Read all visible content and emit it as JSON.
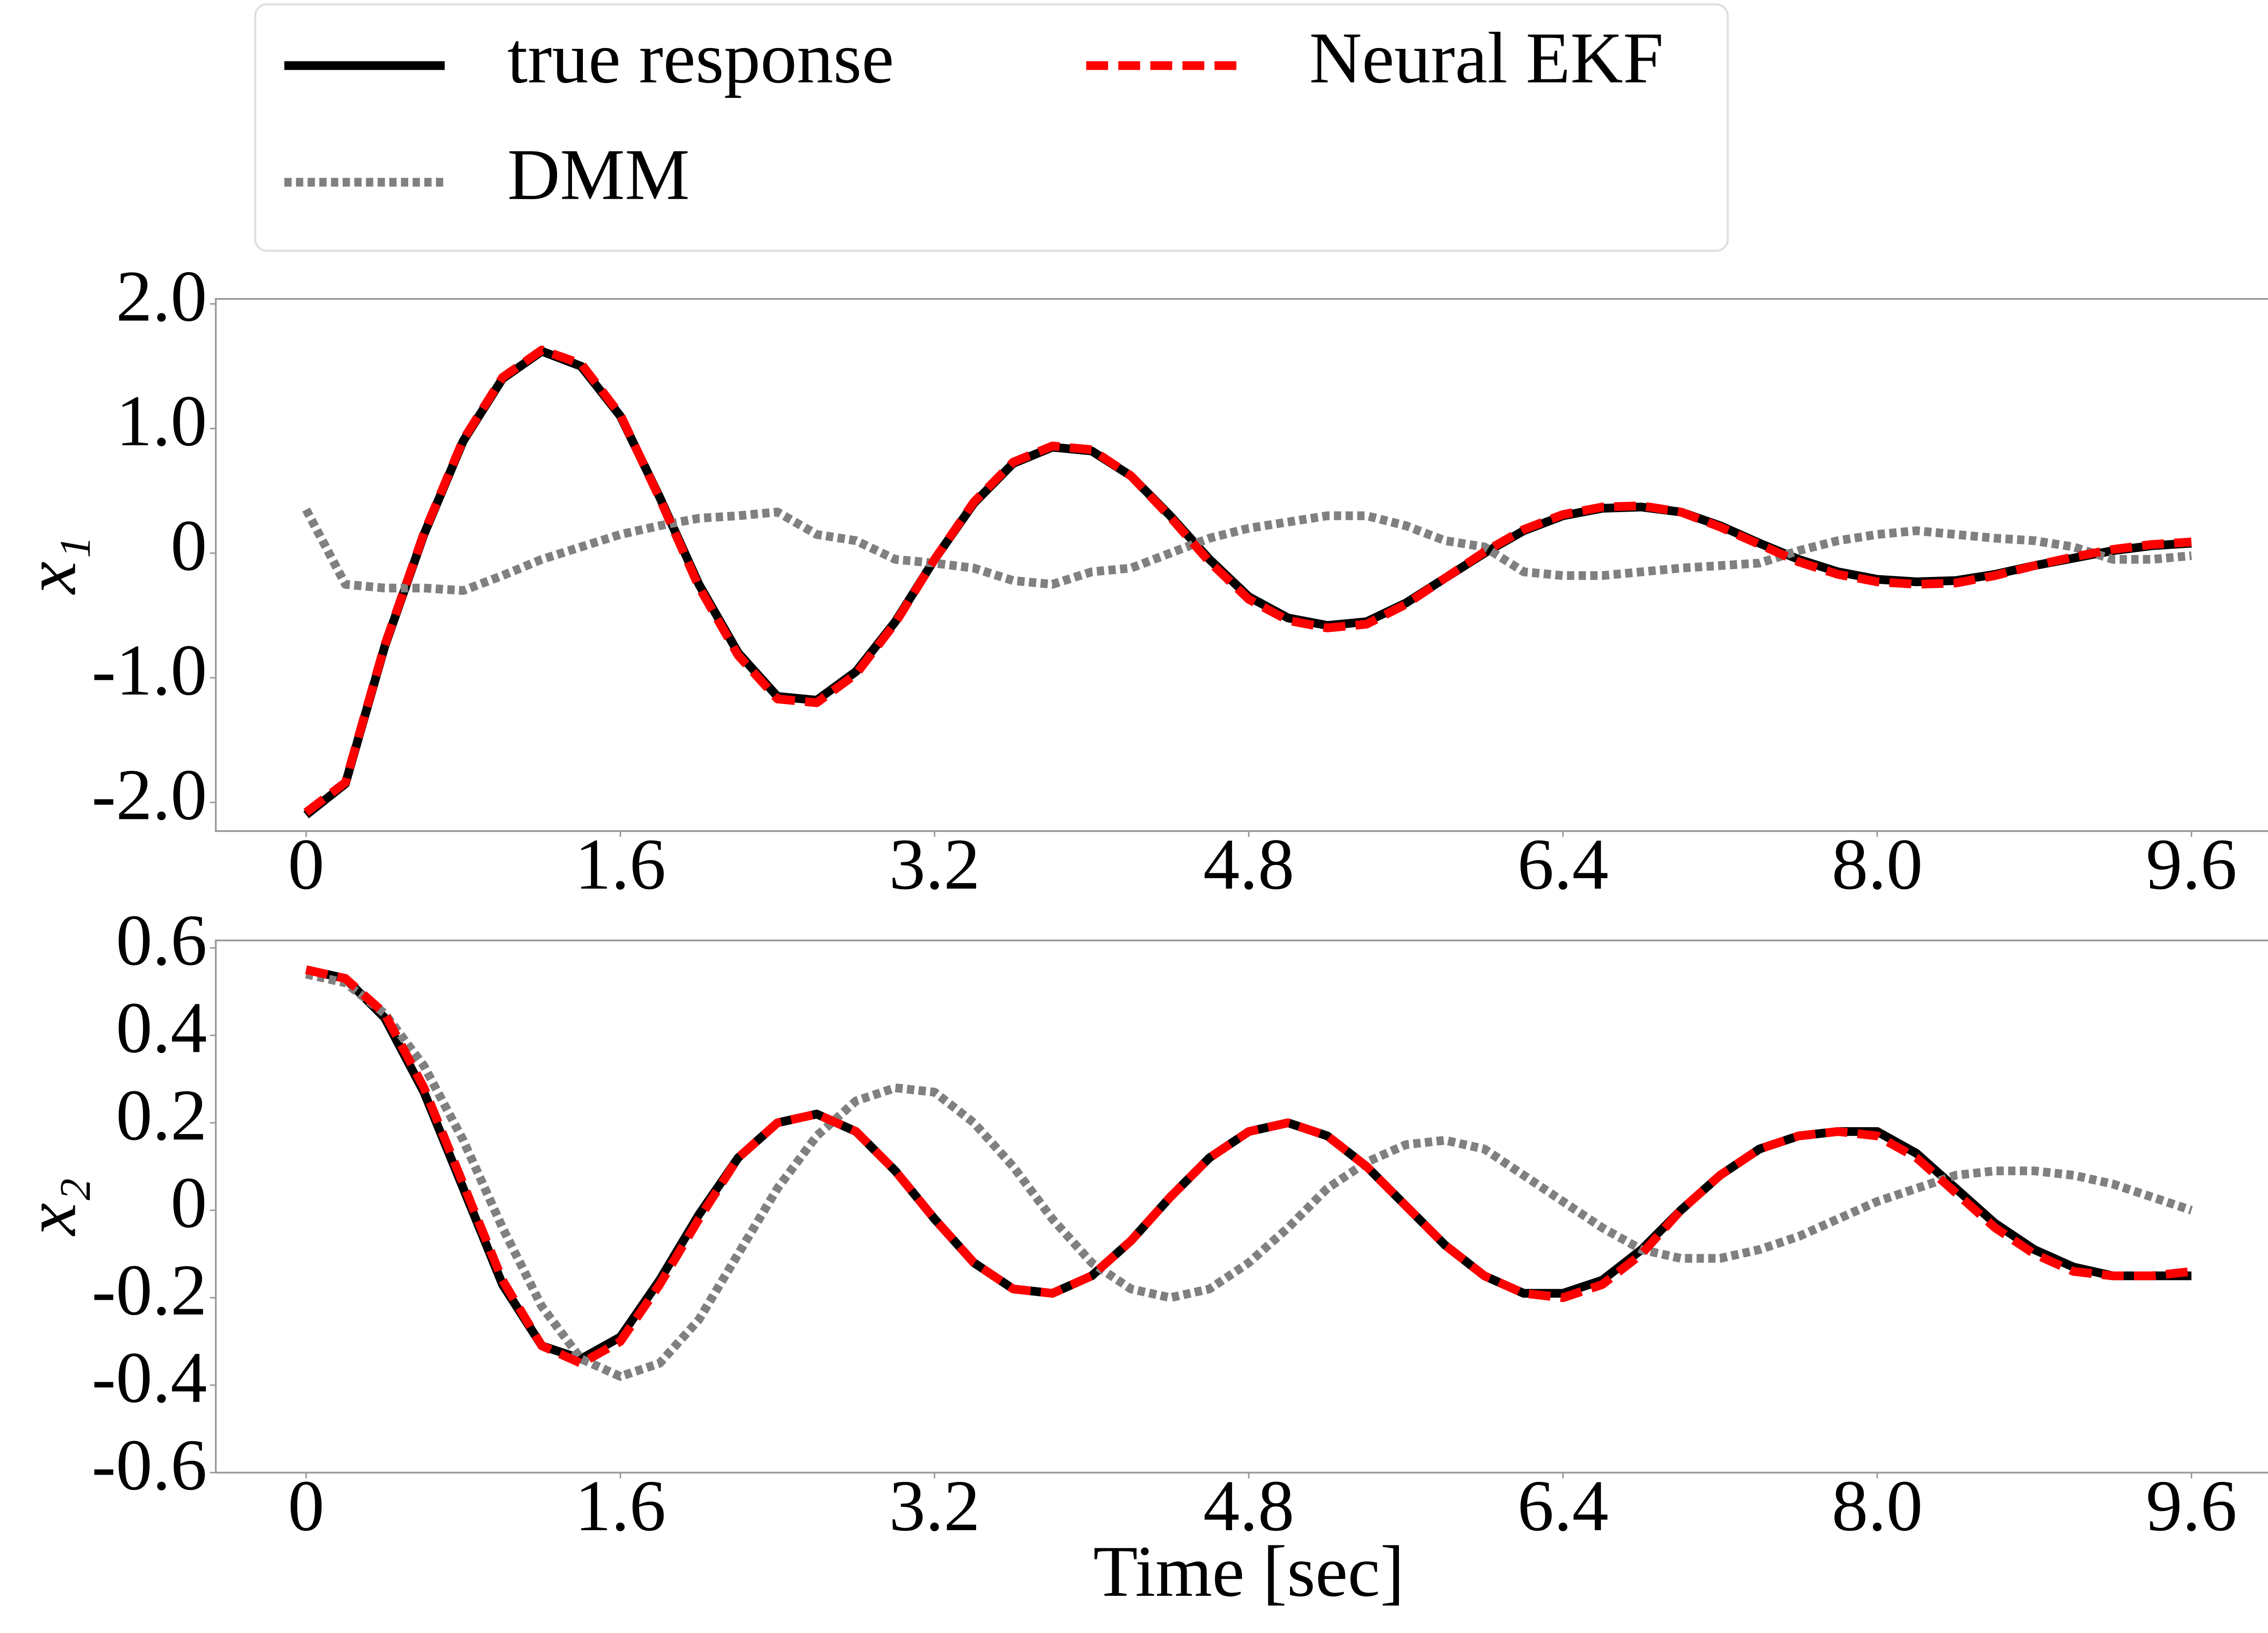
{
  "chart_data": [
    {
      "type": "line",
      "ylabel": "x₁",
      "x": [
        0,
        0.2,
        0.4,
        0.6,
        0.8,
        1.0,
        1.2,
        1.4,
        1.6,
        1.8,
        2.0,
        2.2,
        2.4,
        2.6,
        2.8,
        3.0,
        3.2,
        3.4,
        3.6,
        3.8,
        4.0,
        4.2,
        4.4,
        4.6,
        4.8,
        5.0,
        5.2,
        5.4,
        5.6,
        5.8,
        6.0,
        6.2,
        6.4,
        6.6,
        6.8,
        7.0,
        7.2,
        7.4,
        7.6,
        7.8,
        8.0,
        8.2,
        8.4,
        8.6,
        8.8,
        9.0,
        9.2,
        9.4,
        9.6
      ],
      "series": [
        {
          "name": "true response",
          "color": "#000000",
          "linestyle": "solid",
          "values": [
            -2.1,
            -1.85,
            -0.75,
            0.15,
            0.9,
            1.4,
            1.62,
            1.5,
            1.1,
            0.45,
            -0.25,
            -0.8,
            -1.15,
            -1.18,
            -0.95,
            -0.55,
            -0.05,
            0.4,
            0.72,
            0.85,
            0.82,
            0.62,
            0.3,
            -0.05,
            -0.35,
            -0.52,
            -0.58,
            -0.55,
            -0.4,
            -0.2,
            0.0,
            0.18,
            0.3,
            0.36,
            0.37,
            0.33,
            0.22,
            0.08,
            -0.05,
            -0.15,
            -0.21,
            -0.23,
            -0.22,
            -0.17,
            -0.1,
            -0.04,
            0.02,
            0.06,
            0.08
          ]
        },
        {
          "name": "DMM",
          "color": "#808080",
          "linestyle": "dotted",
          "values": [
            0.35,
            -0.25,
            -0.28,
            -0.28,
            -0.3,
            -0.18,
            -0.05,
            0.05,
            0.15,
            0.22,
            0.28,
            0.3,
            0.33,
            0.15,
            0.1,
            -0.05,
            -0.08,
            -0.12,
            -0.22,
            -0.25,
            -0.15,
            -0.12,
            0.0,
            0.12,
            0.2,
            0.25,
            0.3,
            0.3,
            0.22,
            0.1,
            0.05,
            -0.15,
            -0.18,
            -0.18,
            -0.15,
            -0.12,
            -0.1,
            -0.08,
            0.02,
            0.1,
            0.15,
            0.18,
            0.15,
            0.12,
            0.1,
            0.05,
            -0.05,
            -0.05,
            -0.02
          ]
        },
        {
          "name": "Neural EKF",
          "color": "#ff0000",
          "linestyle": "dashed",
          "values": [
            -2.08,
            -1.84,
            -0.74,
            0.16,
            0.91,
            1.41,
            1.63,
            1.52,
            1.11,
            0.44,
            -0.27,
            -0.82,
            -1.17,
            -1.2,
            -0.97,
            -0.56,
            -0.05,
            0.41,
            0.73,
            0.86,
            0.83,
            0.62,
            0.29,
            -0.07,
            -0.37,
            -0.54,
            -0.6,
            -0.57,
            -0.41,
            -0.2,
            0.01,
            0.19,
            0.31,
            0.37,
            0.38,
            0.33,
            0.21,
            0.07,
            -0.07,
            -0.17,
            -0.23,
            -0.25,
            -0.24,
            -0.18,
            -0.1,
            -0.03,
            0.03,
            0.07,
            0.09
          ]
        }
      ],
      "xlim": [
        -0.46,
        10.06
      ],
      "xticks": [
        0,
        1.6,
        3.2,
        4.8,
        6.4,
        {
          "value": 8,
          "label": "8.0"
        },
        9.6
      ],
      "ylim": [
        -2.23,
        2.04
      ],
      "yticks": [
        {
          "value": -2,
          "label": "-2.0"
        },
        {
          "value": -1,
          "label": "-1.0"
        },
        0,
        {
          "value": 1,
          "label": "1.0"
        },
        {
          "value": 2,
          "label": "2.0"
        }
      ]
    },
    {
      "type": "line",
      "ylabel": "x₂",
      "xlabel": "Time [sec]",
      "x": [
        0,
        0.2,
        0.4,
        0.6,
        0.8,
        1.0,
        1.2,
        1.4,
        1.6,
        1.8,
        2.0,
        2.2,
        2.4,
        2.6,
        2.8,
        3.0,
        3.2,
        3.4,
        3.6,
        3.8,
        4.0,
        4.2,
        4.4,
        4.6,
        4.8,
        5.0,
        5.2,
        5.4,
        5.6,
        5.8,
        6.0,
        6.2,
        6.4,
        6.6,
        6.8,
        7.0,
        7.2,
        7.4,
        7.6,
        7.8,
        8.0,
        8.2,
        8.4,
        8.6,
        8.8,
        9.0,
        9.2,
        9.4,
        9.6
      ],
      "series": [
        {
          "color": "#000000",
          "linestyle": "solid",
          "values": [
            0.55,
            0.53,
            0.44,
            0.27,
            0.05,
            -0.17,
            -0.31,
            -0.34,
            -0.29,
            -0.16,
            -0.01,
            0.12,
            0.2,
            0.22,
            0.18,
            0.09,
            -0.02,
            -0.12,
            -0.18,
            -0.19,
            -0.15,
            -0.07,
            0.03,
            0.12,
            0.18,
            0.2,
            0.17,
            0.1,
            0.01,
            -0.08,
            -0.15,
            -0.19,
            -0.19,
            -0.16,
            -0.09,
            0.0,
            0.08,
            0.14,
            0.17,
            0.18,
            0.18,
            0.13,
            0.05,
            -0.03,
            -0.09,
            -0.13,
            -0.15,
            -0.15,
            -0.15
          ]
        },
        {
          "color": "#808080",
          "linestyle": "dotted",
          "values": [
            0.54,
            0.52,
            0.45,
            0.33,
            0.16,
            -0.04,
            -0.22,
            -0.34,
            -0.38,
            -0.35,
            -0.25,
            -0.1,
            0.05,
            0.17,
            0.25,
            0.28,
            0.27,
            0.2,
            0.1,
            -0.02,
            -0.12,
            -0.18,
            -0.2,
            -0.18,
            -0.12,
            -0.04,
            0.05,
            0.11,
            0.15,
            0.16,
            0.14,
            0.08,
            0.02,
            -0.04,
            -0.09,
            -0.11,
            -0.11,
            -0.09,
            -0.06,
            -0.02,
            0.02,
            0.05,
            0.08,
            0.09,
            0.09,
            0.08,
            0.06,
            0.03,
            0.0
          ]
        },
        {
          "color": "#ff0000",
          "linestyle": "dashed",
          "values": [
            0.55,
            0.53,
            0.45,
            0.28,
            0.06,
            -0.16,
            -0.31,
            -0.35,
            -0.3,
            -0.17,
            -0.02,
            0.12,
            0.2,
            0.22,
            0.18,
            0.09,
            -0.02,
            -0.12,
            -0.18,
            -0.19,
            -0.15,
            -0.07,
            0.03,
            0.12,
            0.18,
            0.2,
            0.17,
            0.1,
            0.01,
            -0.08,
            -0.15,
            -0.19,
            -0.2,
            -0.17,
            -0.1,
            0.0,
            0.08,
            0.14,
            0.17,
            0.18,
            0.17,
            0.12,
            0.04,
            -0.04,
            -0.1,
            -0.14,
            -0.15,
            -0.15,
            -0.14
          ]
        }
      ],
      "xlim": [
        -0.46,
        10.06
      ],
      "xticks": [
        0,
        1.6,
        3.2,
        4.8,
        6.4,
        {
          "value": 8,
          "label": "8.0"
        },
        9.6
      ],
      "ylim": [
        -0.6,
        0.617
      ],
      "yticks": [
        0.6,
        0.4,
        0.2,
        0,
        -0.2,
        -0.4,
        -0.6
      ]
    }
  ]
}
